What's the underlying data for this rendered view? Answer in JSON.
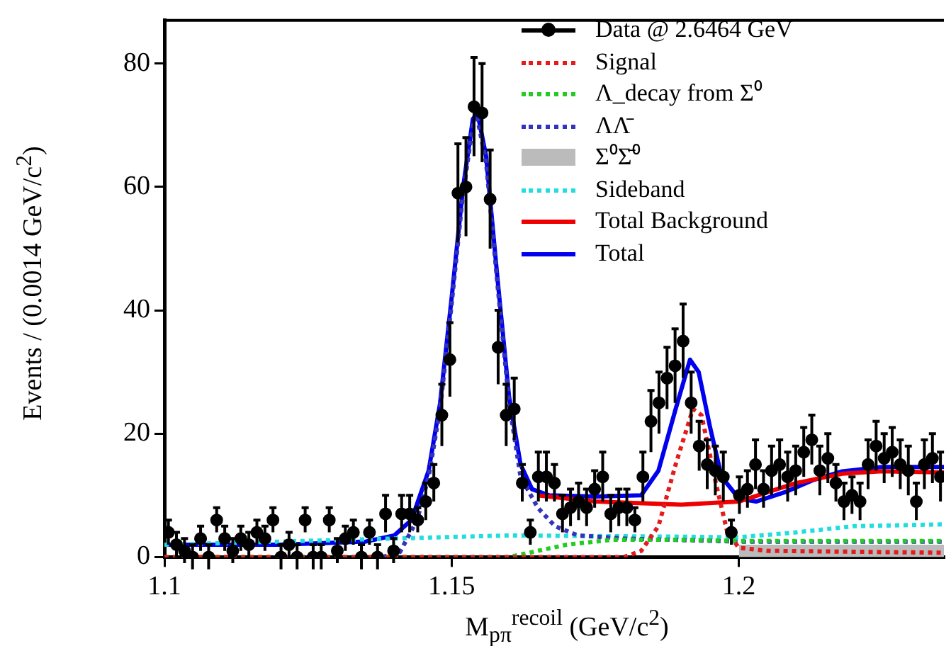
{
  "chart_data": {
    "type": "line",
    "xlabel": "M$_{pπ}$$^{recoil}$ (GeV/c$^{2}$)",
    "ylabel": "Events / (0.0014 GeV/c$^{2}$)",
    "xlim": [
      1.1,
      1.2357
    ],
    "xticks": [
      1.1,
      1.15,
      1.2
    ],
    "ylim": [
      0,
      87
    ],
    "yticks": [
      0,
      20,
      40,
      60,
      80
    ],
    "grid": false,
    "legend": "top right",
    "series": [
      {
        "name": "Data @ 2.6464 GeV",
        "type": "scatter",
        "marker": "circle",
        "color": "#000000",
        "x": [
          1.1007,
          1.1021,
          1.1035,
          1.1049,
          1.1063,
          1.1077,
          1.1091,
          1.1105,
          1.1119,
          1.1133,
          1.1147,
          1.1161,
          1.1175,
          1.1189,
          1.1203,
          1.1217,
          1.1231,
          1.1245,
          1.1259,
          1.1273,
          1.1287,
          1.1301,
          1.1315,
          1.1329,
          1.1343,
          1.1357,
          1.1371,
          1.1385,
          1.1399,
          1.1413,
          1.1427,
          1.1441,
          1.1455,
          1.1469,
          1.1483,
          1.1497,
          1.1511,
          1.1525,
          1.1539,
          1.1553,
          1.1567,
          1.1581,
          1.1595,
          1.1609,
          1.1623,
          1.1637,
          1.1651,
          1.1665,
          1.1679,
          1.1693,
          1.1707,
          1.1721,
          1.1735,
          1.1749,
          1.1763,
          1.1777,
          1.1791,
          1.1805,
          1.1819,
          1.1833,
          1.1847,
          1.1861,
          1.1875,
          1.1889,
          1.1903,
          1.1917,
          1.1931,
          1.1945,
          1.1959,
          1.1973,
          1.1987,
          1.2001,
          1.2015,
          1.2029,
          1.2043,
          1.2057,
          1.2071,
          1.2085,
          1.2099,
          1.2113,
          1.2127,
          1.2141,
          1.2155,
          1.2169,
          1.2183,
          1.2197,
          1.2211,
          1.2225,
          1.2239,
          1.2253,
          1.2267,
          1.2281,
          1.2295,
          1.2309,
          1.2323,
          1.2337,
          1.2351
        ],
        "values": [
          4,
          2,
          1,
          0,
          3,
          0,
          6,
          3,
          1,
          3,
          2,
          4,
          3,
          6,
          0,
          2,
          0,
          6,
          0,
          0,
          6,
          1,
          3,
          4,
          0,
          4,
          0,
          7,
          1,
          7,
          7,
          6,
          9,
          12,
          23,
          32,
          59,
          60,
          73,
          72,
          58,
          34,
          23,
          24,
          12,
          4,
          13,
          13,
          12,
          7,
          8,
          9,
          8,
          11,
          13,
          7,
          8,
          8,
          6,
          13,
          22,
          25,
          29,
          31,
          35,
          25,
          18,
          15,
          14,
          13,
          4,
          10,
          11,
          15,
          11,
          14,
          15,
          13,
          14,
          17,
          19,
          14,
          16,
          12,
          9,
          10,
          9,
          15,
          18,
          16,
          17,
          15,
          14,
          9,
          15,
          16,
          13
        ],
        "errors": [
          2,
          2,
          2,
          2,
          2,
          2,
          2,
          2,
          2,
          2,
          2,
          2,
          2,
          2,
          2,
          2,
          2,
          2,
          2,
          2,
          2,
          2,
          2,
          2,
          2,
          2,
          2,
          3,
          2,
          3,
          3,
          2,
          3,
          3,
          5,
          6,
          8,
          8,
          8,
          8,
          8,
          6,
          5,
          5,
          3,
          2,
          4,
          4,
          3,
          3,
          3,
          3,
          3,
          3,
          4,
          3,
          3,
          3,
          2,
          4,
          5,
          5,
          5,
          6,
          6,
          5,
          4,
          4,
          4,
          4,
          2,
          3,
          3,
          4,
          3,
          4,
          4,
          4,
          4,
          4,
          4,
          4,
          4,
          3,
          3,
          3,
          3,
          4,
          4,
          4,
          4,
          4,
          4,
          3,
          4,
          4,
          4
        ]
      },
      {
        "name": "Signal",
        "type": "line",
        "line_style": "dotted",
        "color": "#e41a1c",
        "x": [
          1.1,
          1.18,
          1.183,
          1.186,
          1.189,
          1.192,
          1.1935,
          1.196,
          1.198,
          1.2,
          1.205,
          1.2357
        ],
        "values": [
          0,
          0,
          1,
          5,
          15,
          24,
          23,
          12,
          4,
          1.5,
          1,
          0.7
        ]
      },
      {
        "name": "Λ_decay from Σ⁰",
        "type": "line",
        "line_style": "dotted",
        "color": "#22cc22",
        "x": [
          1.1,
          1.16,
          1.165,
          1.17,
          1.178,
          1.19,
          1.2,
          1.2357
        ],
        "values": [
          0,
          0,
          1,
          2,
          2.8,
          2.8,
          2.6,
          2.6
        ]
      },
      {
        "name": "ΛΛ̄",
        "type": "line",
        "line_style": "dotted",
        "color": "#3333bb",
        "x": [
          1.138,
          1.141,
          1.144,
          1.146,
          1.148,
          1.15,
          1.152,
          1.1537,
          1.1545,
          1.156,
          1.158,
          1.16,
          1.162,
          1.165,
          1.168,
          1.172,
          1.18,
          1.2,
          1.2357
        ],
        "values": [
          0,
          0.8,
          6,
          13,
          24,
          41,
          59,
          70,
          71,
          64,
          44,
          25,
          13,
          8,
          5,
          3.5,
          3,
          2.5,
          2.5
        ]
      },
      {
        "name": "Σ⁰Σ̄⁰",
        "type": "area",
        "color": "#bbbbbb",
        "x": [
          1.2,
          1.2357
        ],
        "values": [
          2,
          2
        ]
      },
      {
        "name": "Sideband",
        "type": "line",
        "line_style": "dotted",
        "color": "#22dddd",
        "x": [
          1.1,
          1.14,
          1.16,
          1.19,
          1.2,
          1.21,
          1.22,
          1.2357
        ],
        "values": [
          2,
          3,
          3.5,
          3.3,
          3.2,
          4,
          5,
          5.3
        ]
      },
      {
        "name": "Total Background",
        "type": "line",
        "line_style": "solid",
        "color": "#ee0000",
        "x": [
          1.165,
          1.175,
          1.19,
          1.2,
          1.205,
          1.21,
          1.218,
          1.225,
          1.2357
        ],
        "values": [
          10,
          9,
          8.5,
          9,
          10.5,
          12,
          13.5,
          13.9,
          13.7
        ]
      },
      {
        "name": "Total",
        "type": "line",
        "line_style": "solid",
        "color": "#0000ee",
        "x": [
          1.1,
          1.12,
          1.135,
          1.14,
          1.143,
          1.146,
          1.148,
          1.15,
          1.152,
          1.1537,
          1.1545,
          1.156,
          1.158,
          1.16,
          1.162,
          1.164,
          1.167,
          1.175,
          1.183,
          1.186,
          1.189,
          1.1915,
          1.193,
          1.195,
          1.197,
          1.2,
          1.203,
          1.208,
          1.213,
          1.218,
          1.225,
          1.2357
        ],
        "values": [
          2,
          2,
          2.5,
          3.5,
          6,
          14,
          25,
          42,
          60,
          71,
          72,
          65,
          45,
          26,
          15,
          11,
          10,
          9.8,
          10,
          14,
          24,
          32,
          30,
          21,
          13,
          9.5,
          9,
          10.5,
          12.5,
          13.9,
          14.6,
          14.6
        ]
      }
    ]
  }
}
